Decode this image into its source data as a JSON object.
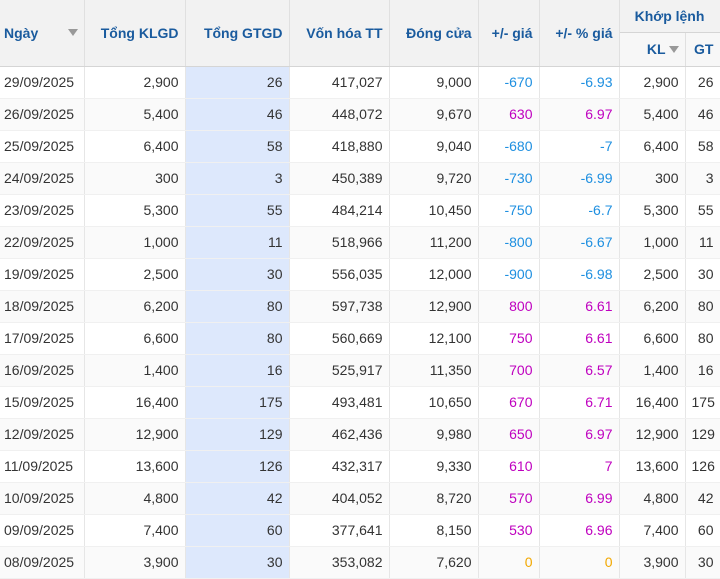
{
  "headers": {
    "date": "Ngày",
    "total_volume": "Tổng KLGD",
    "total_value": "Tổng GTGD",
    "market_cap": "Vốn hóa TT",
    "close": "Đóng cửa",
    "change": "+/- giá",
    "change_pct": "+/- % giá",
    "matched": "Khớp lệnh",
    "matched_volume": "KL",
    "matched_value": "GT"
  },
  "icons": {
    "date_sort": "sort-down-icon",
    "kl_sort": "sort-down-icon"
  },
  "colors": {
    "header_text": "#1a5b9e",
    "negative": "#1e8fe0",
    "positive": "#bf00bf",
    "unchanged": "#f2a800",
    "highlight": "#dde8fc"
  },
  "rows": [
    {
      "date": "29/09/2025",
      "vol": "2,900",
      "val": "26",
      "cap": "417,027",
      "close": "9,000",
      "chg": "-670",
      "pct": "-6.93",
      "kl": "2,900",
      "gt": "26",
      "dir": "neg"
    },
    {
      "date": "26/09/2025",
      "vol": "5,400",
      "val": "46",
      "cap": "448,072",
      "close": "9,670",
      "chg": "630",
      "pct": "6.97",
      "kl": "5,400",
      "gt": "46",
      "dir": "pos"
    },
    {
      "date": "25/09/2025",
      "vol": "6,400",
      "val": "58",
      "cap": "418,880",
      "close": "9,040",
      "chg": "-680",
      "pct": "-7",
      "kl": "6,400",
      "gt": "58",
      "dir": "neg"
    },
    {
      "date": "24/09/2025",
      "vol": "300",
      "val": "3",
      "cap": "450,389",
      "close": "9,720",
      "chg": "-730",
      "pct": "-6.99",
      "kl": "300",
      "gt": "3",
      "dir": "neg"
    },
    {
      "date": "23/09/2025",
      "vol": "5,300",
      "val": "55",
      "cap": "484,214",
      "close": "10,450",
      "chg": "-750",
      "pct": "-6.7",
      "kl": "5,300",
      "gt": "55",
      "dir": "neg"
    },
    {
      "date": "22/09/2025",
      "vol": "1,000",
      "val": "11",
      "cap": "518,966",
      "close": "11,200",
      "chg": "-800",
      "pct": "-6.67",
      "kl": "1,000",
      "gt": "11",
      "dir": "neg"
    },
    {
      "date": "19/09/2025",
      "vol": "2,500",
      "val": "30",
      "cap": "556,035",
      "close": "12,000",
      "chg": "-900",
      "pct": "-6.98",
      "kl": "2,500",
      "gt": "30",
      "dir": "neg"
    },
    {
      "date": "18/09/2025",
      "vol": "6,200",
      "val": "80",
      "cap": "597,738",
      "close": "12,900",
      "chg": "800",
      "pct": "6.61",
      "kl": "6,200",
      "gt": "80",
      "dir": "pos"
    },
    {
      "date": "17/09/2025",
      "vol": "6,600",
      "val": "80",
      "cap": "560,669",
      "close": "12,100",
      "chg": "750",
      "pct": "6.61",
      "kl": "6,600",
      "gt": "80",
      "dir": "pos"
    },
    {
      "date": "16/09/2025",
      "vol": "1,400",
      "val": "16",
      "cap": "525,917",
      "close": "11,350",
      "chg": "700",
      "pct": "6.57",
      "kl": "1,400",
      "gt": "16",
      "dir": "pos"
    },
    {
      "date": "15/09/2025",
      "vol": "16,400",
      "val": "175",
      "cap": "493,481",
      "close": "10,650",
      "chg": "670",
      "pct": "6.71",
      "kl": "16,400",
      "gt": "175",
      "dir": "pos"
    },
    {
      "date": "12/09/2025",
      "vol": "12,900",
      "val": "129",
      "cap": "462,436",
      "close": "9,980",
      "chg": "650",
      "pct": "6.97",
      "kl": "12,900",
      "gt": "129",
      "dir": "pos"
    },
    {
      "date": "11/09/2025",
      "vol": "13,600",
      "val": "126",
      "cap": "432,317",
      "close": "9,330",
      "chg": "610",
      "pct": "7",
      "kl": "13,600",
      "gt": "126",
      "dir": "pos"
    },
    {
      "date": "10/09/2025",
      "vol": "4,800",
      "val": "42",
      "cap": "404,052",
      "close": "8,720",
      "chg": "570",
      "pct": "6.99",
      "kl": "4,800",
      "gt": "42",
      "dir": "pos"
    },
    {
      "date": "09/09/2025",
      "vol": "7,400",
      "val": "60",
      "cap": "377,641",
      "close": "8,150",
      "chg": "530",
      "pct": "6.96",
      "kl": "7,400",
      "gt": "60",
      "dir": "pos"
    },
    {
      "date": "08/09/2025",
      "vol": "3,900",
      "val": "30",
      "cap": "353,082",
      "close": "7,620",
      "chg": "0",
      "pct": "0",
      "kl": "3,900",
      "gt": "30",
      "dir": "zero"
    }
  ]
}
